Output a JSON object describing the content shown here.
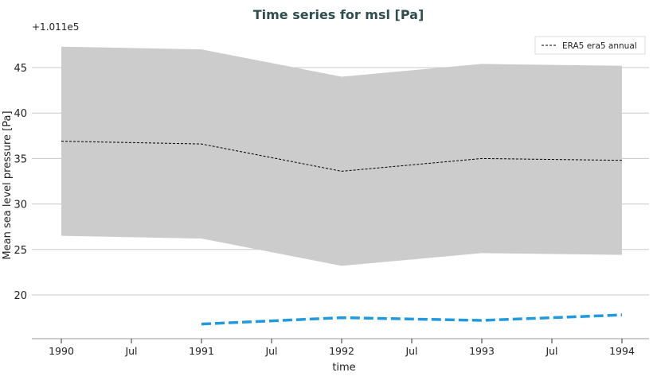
{
  "chart_data": {
    "type": "line",
    "title": "Time series for msl [Pa]",
    "xlabel": "time",
    "ylabel": "Mean sea level pressure [Pa]",
    "offset_label": "+1.011e5",
    "x_ticks": [
      "1990",
      "Jul",
      "1991",
      "Jul",
      "1992",
      "Jul",
      "1993",
      "Jul",
      "1994"
    ],
    "y_ticks": [
      20,
      25,
      30,
      35,
      40,
      45
    ],
    "ylim": [
      15.2,
      49
    ],
    "xlim": [
      1989.8,
      1994.2
    ],
    "grid": "horizontal",
    "legend_position": "top-right",
    "series": [
      {
        "name": "ERA5 era5 annual",
        "style": "dashed",
        "color": "#000000",
        "x": [
          1990,
          1991,
          1992,
          1993,
          1994
        ],
        "values": [
          36.9,
          36.6,
          33.6,
          35.0,
          34.8
        ]
      },
      {
        "style": "dashed-thick",
        "color": "#1f9ae0",
        "x": [
          1991,
          1992,
          1993,
          1994
        ],
        "values": [
          16.8,
          17.5,
          17.2,
          17.8
        ]
      }
    ],
    "band": {
      "color": "#cccccc",
      "x": [
        1990,
        1991,
        1992,
        1993,
        1994
      ],
      "upper": [
        47.3,
        47.0,
        44.0,
        45.4,
        45.2
      ],
      "lower": [
        26.5,
        26.2,
        23.2,
        24.6,
        24.4
      ]
    }
  }
}
